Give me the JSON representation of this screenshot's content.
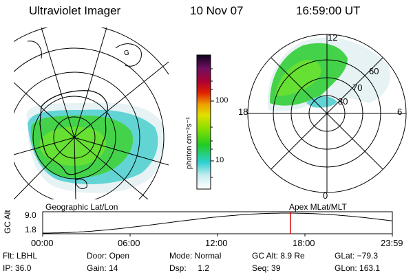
{
  "header": {
    "title": "Ultraviolet Imager",
    "date": "10 Nov 07",
    "time": "16:59:00 UT"
  },
  "left_panel": {
    "caption": "Geographic Lat/Lon"
  },
  "colorbar": {
    "unit_label": "photon cm⁻²s⁻¹",
    "ticks": [
      "100",
      "10"
    ]
  },
  "right_panel": {
    "caption": "Apex MLat/MLT",
    "mlt_labels": {
      "top": "12",
      "left": "18",
      "right": "6",
      "bottom": "0"
    },
    "lat_labels": [
      "60",
      "70",
      "80"
    ]
  },
  "altitude_plot": {
    "ylabel": "GC Alt",
    "y_ticks": [
      "9.0",
      "1.8"
    ],
    "x_ticks": [
      "00:00",
      "06:00",
      "12:00",
      "18:00",
      "23:59"
    ],
    "marker_hour": 17.0
  },
  "footer": {
    "r1": [
      "Flt: LBHL",
      "Door: Open",
      "Mode: Normal",
      "GC Alt: 8.9 Re",
      "GLat: −79.3"
    ],
    "r2": [
      "IP: 36.0",
      "Gain: 14",
      "Dsp:     1.2",
      "Seq: 39",
      "GLon: 163.1"
    ]
  },
  "colors": {
    "marker": "#e00000"
  }
}
